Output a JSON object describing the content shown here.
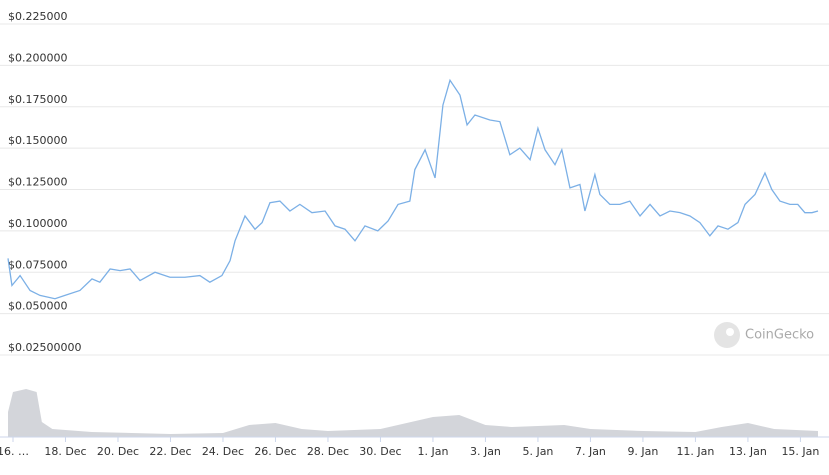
{
  "chart_data": {
    "type": "line",
    "watermark": "CoinGecko",
    "x": [
      -0.19,
      -0.04,
      0.27,
      0.65,
      1.03,
      1.6,
      1.98,
      2.55,
      3.01,
      3.31,
      3.7,
      4.08,
      4.46,
      4.84,
      5.41,
      5.98,
      6.55,
      7.12,
      7.5,
      7.96,
      8.27,
      8.46,
      8.84,
      9.22,
      9.49,
      9.79,
      10.17,
      10.55,
      10.93,
      11.39,
      11.89,
      12.27,
      12.65,
      13.03,
      13.41,
      13.9,
      14.29,
      14.67,
      15.12,
      15.31,
      15.7,
      16.08,
      16.38,
      16.65,
      17.03,
      17.3,
      17.6,
      18.17,
      18.55,
      18.93,
      19.31,
      19.7,
      20,
      20.27,
      20.65,
      20.91,
      21.22,
      21.6,
      21.79,
      22.17,
      22.36,
      22.74,
      23.12,
      23.5,
      23.89,
      24.27,
      24.65,
      25.03,
      25.41,
      25.79,
      26.17,
      26.55,
      26.86,
      27.24,
      27.62,
      27.89,
      28.27,
      28.65,
      28.91,
      29.22,
      29.6,
      29.9,
      30.17,
      30.44,
      30.67
    ],
    "series": [
      {
        "color": "#7cb0e6",
        "values": [
          0.0834,
          0.067,
          0.073,
          0.064,
          0.061,
          0.059,
          0.061,
          0.064,
          0.071,
          0.069,
          0.077,
          0.076,
          0.077,
          0.07,
          0.075,
          0.072,
          0.072,
          0.073,
          0.069,
          0.073,
          0.082,
          0.094,
          0.109,
          0.101,
          0.105,
          0.117,
          0.118,
          0.112,
          0.116,
          0.111,
          0.112,
          0.103,
          0.101,
          0.094,
          0.103,
          0.1,
          0.106,
          0.116,
          0.118,
          0.137,
          0.149,
          0.132,
          0.176,
          0.191,
          0.182,
          0.164,
          0.17,
          0.167,
          0.166,
          0.146,
          0.15,
          0.143,
          0.162,
          0.149,
          0.14,
          0.149,
          0.126,
          0.128,
          0.112,
          0.134,
          0.122,
          0.116,
          0.116,
          0.118,
          0.109,
          0.116,
          0.109,
          0.112,
          0.111,
          0.109,
          0.105,
          0.097,
          0.103,
          0.101,
          0.105,
          0.116,
          0.122,
          0.135,
          0.125,
          0.118,
          0.116,
          0.116,
          0.111,
          0.111,
          0.112
        ]
      }
    ],
    "volume": {
      "color": "#d3d5da",
      "ylim": [
        0,
        50
      ],
      "x": [
        -0.19,
        0,
        0.5,
        0.9,
        1.1,
        1.5,
        3,
        6,
        8,
        9,
        10,
        11,
        12,
        14,
        15,
        16,
        17,
        18,
        19,
        21,
        22,
        24,
        26,
        27,
        28,
        29,
        30.67
      ],
      "values": [
        25,
        45,
        48,
        45,
        15,
        8,
        5,
        3,
        4,
        12,
        14,
        8,
        6,
        8,
        14,
        20,
        22,
        12,
        10,
        12,
        8,
        6,
        5,
        10,
        14,
        8,
        6
      ]
    },
    "xlim": [
      -0.19,
      30.67
    ],
    "xticks": [
      {
        "value": 0,
        "label": "16. …"
      },
      {
        "value": 2,
        "label": "18. Dec"
      },
      {
        "value": 4,
        "label": "20. Dec"
      },
      {
        "value": 6,
        "label": "22. Dec"
      },
      {
        "value": 8,
        "label": "24. Dec"
      },
      {
        "value": 10,
        "label": "26. Dec"
      },
      {
        "value": 12,
        "label": "28. Dec"
      },
      {
        "value": 14,
        "label": "30. Dec"
      },
      {
        "value": 16,
        "label": "1. Jan"
      },
      {
        "value": 18,
        "label": "3. Jan"
      },
      {
        "value": 20,
        "label": "5. Jan"
      },
      {
        "value": 22,
        "label": "7. Jan"
      },
      {
        "value": 24,
        "label": "9. Jan"
      },
      {
        "value": 26,
        "label": "11. Jan"
      },
      {
        "value": 28,
        "label": "13. Jan"
      },
      {
        "value": 30,
        "label": "15. Jan"
      }
    ],
    "ylim": [
      0.025,
      0.225
    ],
    "yticks": [
      {
        "value": 0.225,
        "label": "$0.225000"
      },
      {
        "value": 0.2,
        "label": "$0.200000"
      },
      {
        "value": 0.175,
        "label": "$0.175000"
      },
      {
        "value": 0.15,
        "label": "$0.150000"
      },
      {
        "value": 0.125,
        "label": "$0.125000"
      },
      {
        "value": 0.1,
        "label": "$0.100000"
      },
      {
        "value": 0.075,
        "label": "$0.075000"
      },
      {
        "value": 0.05,
        "label": "$0.050000"
      },
      {
        "value": 0.025,
        "label": "$0.02500000"
      }
    ],
    "grid": true
  }
}
